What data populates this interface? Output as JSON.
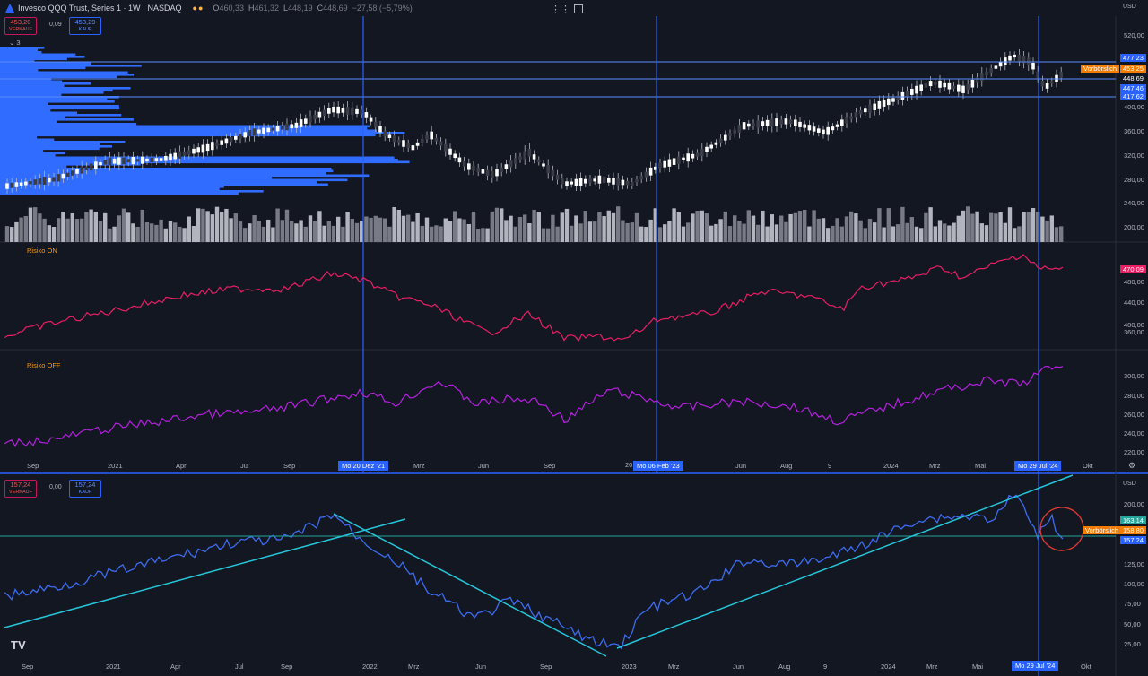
{
  "top": {
    "symbol_title": "Invesco QQQ Trust, Series 1 · 1W · NASDAQ",
    "ohlc": [
      {
        "k": "O",
        "v": "460,33"
      },
      {
        "k": "H",
        "v": "461,32"
      },
      {
        "k": "L",
        "v": "448,19"
      },
      {
        "k": "C",
        "v": "448,69"
      }
    ],
    "change": "−27,58 (−5,79%)",
    "sell_price": "453,20",
    "sell_label": "VERKAUF",
    "spread": "0,09",
    "buy_price": "453,29",
    "buy_label": "KAUF",
    "indicator_count": "3",
    "currency": "USD",
    "price_axis": [
      "520,00",
      "480,00",
      "440,00",
      "400,00",
      "360,00",
      "320,00",
      "280,00",
      "240,00",
      "200,00"
    ],
    "price_badges": {
      "p1": "477,23",
      "vorb_label": "Vorbörslich",
      "vorb": "453,25",
      "last": "448,69",
      "p2": "447,46",
      "p3": "417,62"
    }
  },
  "risk_on": {
    "label": "Risiko ON",
    "value": "470,09",
    "axis": [
      "480,00",
      "440,00",
      "400,00",
      "360,00",
      "320,00"
    ]
  },
  "risk_off": {
    "label": "Risiko OFF",
    "axis": [
      "300,00",
      "280,00",
      "260,00",
      "240,00",
      "220,00"
    ]
  },
  "time_axis": {
    "labels": [
      "Sep",
      "2021",
      "Apr",
      "Jul",
      "Sep",
      "Mrz",
      "Jun",
      "Sep",
      "Jun",
      "Aug",
      "9",
      "2024",
      "Mrz",
      "Mai",
      "Okt"
    ],
    "crosshair1": "Mo 20 Dez '21",
    "crosshair2": "Mo 06 Feb '23",
    "crosshair3": "Mo 29 Jul '24",
    "partial": "20"
  },
  "bottom": {
    "sell_price": "157,24",
    "sell_label": "VERKAUF",
    "spread": "0,00",
    "buy_price": "157,24",
    "buy_label": "KAUF",
    "currency": "USD",
    "price_axis": [
      "200,00",
      "175,00",
      "150,00",
      "125,00",
      "100,00",
      "75,00",
      "50,00",
      "25,00"
    ],
    "badges": {
      "b1": "163,14",
      "vorb_label": "Vorbörslich",
      "vorb": "158,80",
      "last": "157,24"
    },
    "time_labels": [
      "Sep",
      "2021",
      "Apr",
      "Jul",
      "Sep",
      "2022",
      "Mrz",
      "Jun",
      "Sep",
      "2023",
      "Mrz",
      "Jun",
      "Aug",
      "9",
      "2024",
      "Mrz",
      "Mai",
      "Okt"
    ],
    "crosshair": "Mo 29 Jul '24",
    "tv_logo": "TV"
  },
  "colors": {
    "bg": "#131722",
    "blue": "#2962ff",
    "pink": "#e91e63",
    "purple": "#9c27b0",
    "teal": "#26c6da",
    "orange": "#f57c00",
    "volprofile": "#2f6cff"
  }
}
